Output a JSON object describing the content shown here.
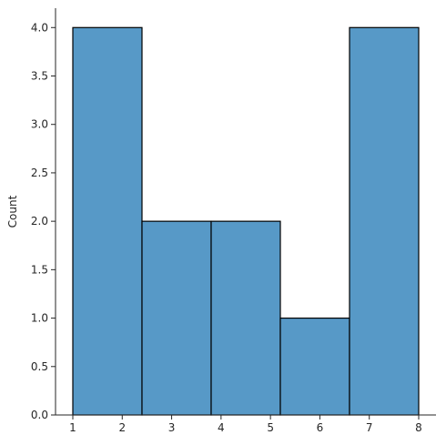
{
  "chart_data": {
    "type": "bar",
    "subtype": "histogram",
    "bins": [
      {
        "x0": 1.0,
        "x1": 2.4,
        "count": 4
      },
      {
        "x0": 2.4,
        "x1": 3.8,
        "count": 2
      },
      {
        "x0": 3.8,
        "x1": 5.2,
        "count": 2
      },
      {
        "x0": 5.2,
        "x1": 6.6,
        "count": 1
      },
      {
        "x0": 6.6,
        "x1": 8.0,
        "count": 4
      }
    ],
    "title": "",
    "xlabel": "",
    "ylabel": "Count",
    "xlim": [
      0.65,
      8.35
    ],
    "ylim": [
      0,
      4.2
    ],
    "xticks": [
      1,
      2,
      3,
      4,
      5,
      6,
      7,
      8
    ],
    "yticks": [
      0.0,
      0.5,
      1.0,
      1.5,
      2.0,
      2.5,
      3.0,
      3.5,
      4.0
    ],
    "xtick_labels": [
      "1",
      "2",
      "3",
      "4",
      "5",
      "6",
      "7",
      "8"
    ],
    "ytick_labels": [
      "0.0",
      "0.5",
      "1.0",
      "1.5",
      "2.0",
      "2.5",
      "3.0",
      "3.5",
      "4.0"
    ],
    "grid": false,
    "legend": "none",
    "bar_color": "#5799c7",
    "edge_color": "#000000",
    "axis_color": "#262626"
  }
}
